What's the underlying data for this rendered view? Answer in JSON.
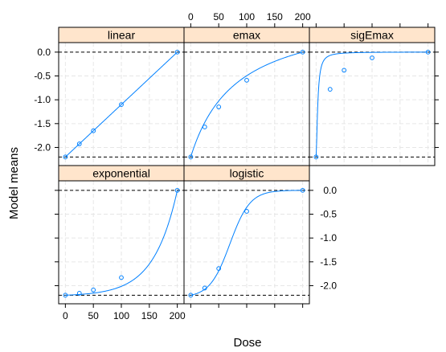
{
  "chart_data": {
    "type": "line",
    "xlabel": "Dose",
    "ylabel": "Model means",
    "xlim": [
      -12,
      212
    ],
    "ylim": [
      -2.38,
      0.2
    ],
    "x_ticks": [
      0,
      50,
      100,
      150,
      200
    ],
    "y_ticks": [
      0.0,
      -0.5,
      -1.0,
      -1.5,
      -2.0
    ],
    "x_tick_labels": [
      "0",
      "50",
      "100",
      "150",
      "200"
    ],
    "y_tick_labels": [
      "0.0",
      "-0.5",
      "-1.0",
      "-1.5",
      "-2.0"
    ],
    "reference_lines": [
      0.0,
      -2.2
    ],
    "grid": true,
    "colors": {
      "line": "#0080ff",
      "strip": "#ffe5cc",
      "reference": "#000000",
      "grid": "#e6e6e6"
    },
    "panels": [
      {
        "name": "linear",
        "curve": "linear",
        "doses": [
          0,
          25,
          50,
          100,
          200
        ],
        "values": [
          -2.2,
          -1.925,
          -1.65,
          -1.1,
          0.0
        ]
      },
      {
        "name": "emax",
        "curve": "emax",
        "doses": [
          0,
          25,
          50,
          100,
          200
        ],
        "values": [
          -2.2,
          -1.57,
          -1.15,
          -0.59,
          0.0
        ]
      },
      {
        "name": "sigEmax",
        "curve": "sigEmax",
        "doses": [
          0,
          25,
          50,
          100,
          200
        ],
        "values": [
          -2.2,
          -0.78,
          -0.38,
          -0.12,
          0.0
        ]
      },
      {
        "name": "exponential",
        "curve": "exponential",
        "doses": [
          0,
          25,
          50,
          100,
          200
        ],
        "values": [
          -2.2,
          -2.16,
          -2.09,
          -1.83,
          0.0
        ]
      },
      {
        "name": "logistic",
        "curve": "logistic",
        "doses": [
          0,
          25,
          50,
          100,
          200
        ],
        "values": [
          -2.2,
          -2.05,
          -1.64,
          -0.44,
          0.0
        ]
      }
    ]
  }
}
